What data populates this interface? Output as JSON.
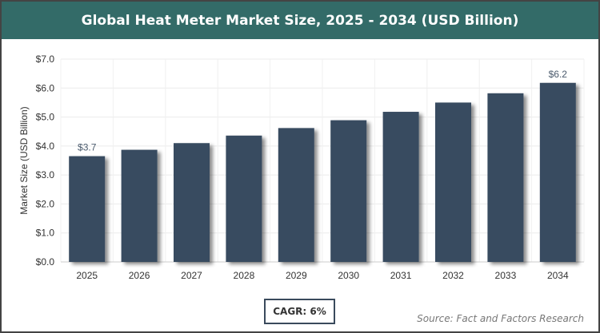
{
  "chart_data": {
    "type": "bar",
    "title": "Global Heat Meter Market Size, 2025 - 2034 (USD Billion)",
    "xlabel": "",
    "ylabel": "Market Size (USD Billion)",
    "categories": [
      "2025",
      "2026",
      "2027",
      "2028",
      "2029",
      "2030",
      "2031",
      "2032",
      "2033",
      "2034"
    ],
    "values": [
      3.65,
      3.87,
      4.1,
      4.36,
      4.62,
      4.89,
      5.18,
      5.5,
      5.82,
      6.18
    ],
    "data_labels": {
      "0": "$3.7",
      "9": "$6.2"
    },
    "ylim": [
      0,
      7
    ],
    "yticks": [
      "$0.0",
      "$1.0",
      "$2.0",
      "$3.0",
      "$4.0",
      "$5.0",
      "$6.0",
      "$7.0"
    ],
    "grid": true,
    "bar_color": "#374b60"
  },
  "cagr": "CAGR: 6%",
  "source": "Source: Fact and Factors Research",
  "header_color": "#336b68"
}
